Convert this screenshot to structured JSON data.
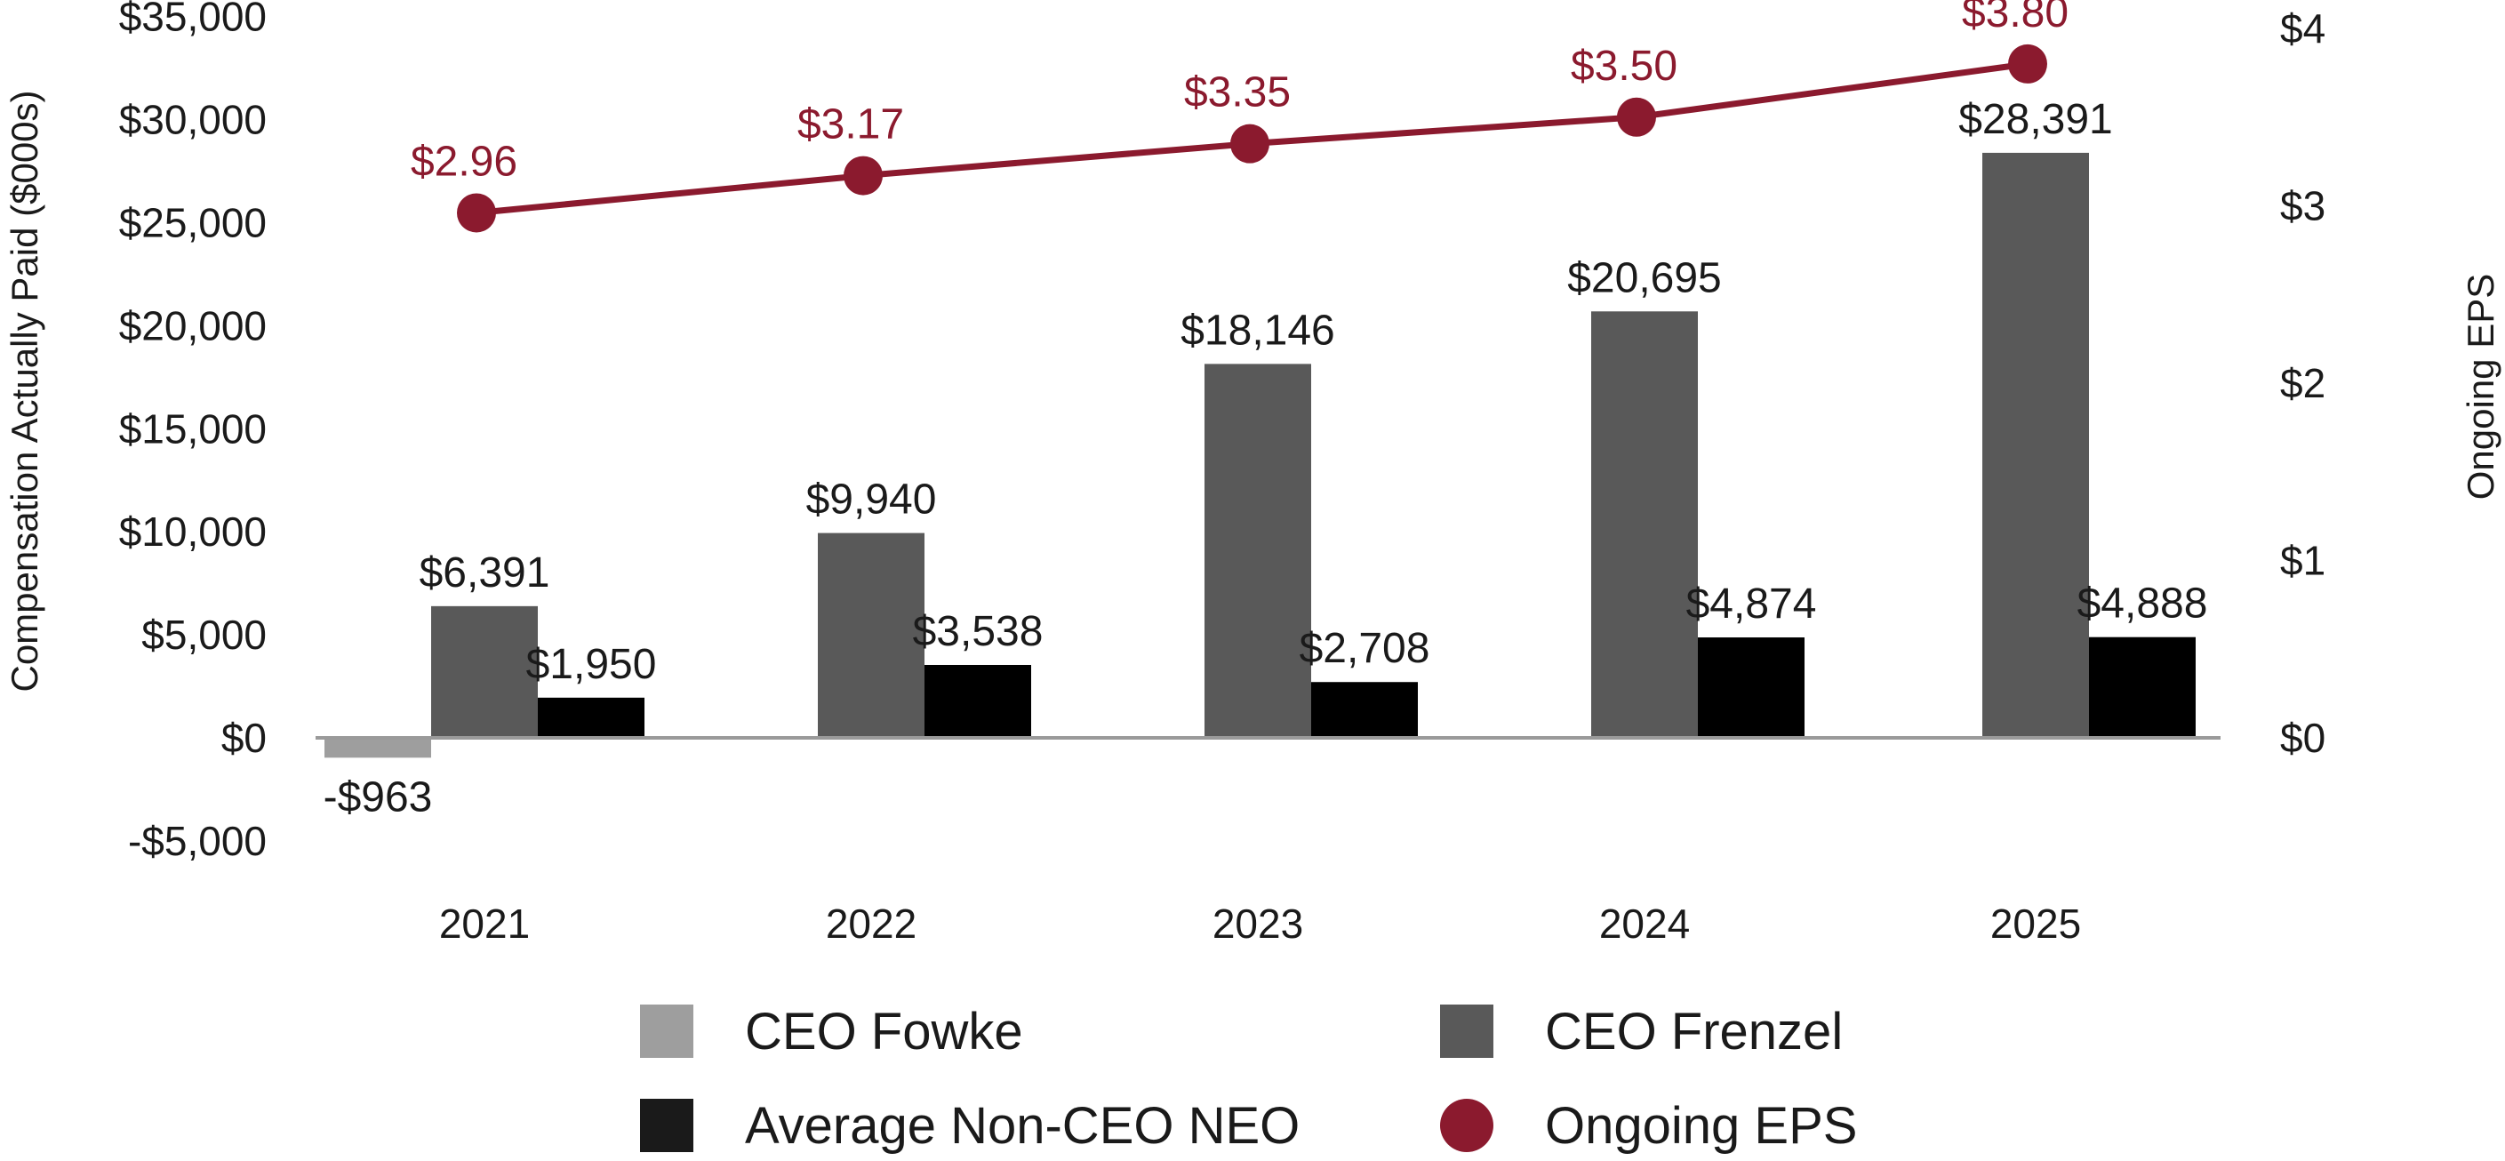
{
  "chart_data": {
    "type": "bar",
    "categories": [
      "2021",
      "2022",
      "2023",
      "2024",
      "2025"
    ],
    "series": [
      {
        "name": "CEO Fowke",
        "color": "#9e9e9e",
        "values": [
          -963,
          null,
          null,
          null,
          null
        ],
        "labels": [
          "-$963",
          "",
          "",
          "",
          ""
        ]
      },
      {
        "name": "CEO Frenzel",
        "color": "#595959",
        "values": [
          6391,
          9940,
          18146,
          20695,
          28391
        ],
        "labels": [
          "$6,391",
          "$9,940",
          "$18,146",
          "$20,695",
          "$28,391"
        ]
      },
      {
        "name": "Average Non-CEO NEO",
        "color": "#000000",
        "values": [
          1950,
          3538,
          2708,
          4874,
          4888
        ],
        "labels": [
          "$1,950",
          "$3,538",
          "$2,708",
          "$4,874",
          "$4,888"
        ]
      }
    ],
    "line_series": {
      "name": "Ongoing EPS",
      "type": "line",
      "axis": "right",
      "color": "#8b1a2e",
      "values": [
        2.96,
        3.17,
        3.35,
        3.5,
        3.8
      ],
      "labels": [
        "$2.96",
        "$3.17",
        "$3.35",
        "$3.50",
        "$3.80"
      ]
    },
    "ylabel": "Compensation Actually Paid ($000s)",
    "y2label": "Ongoing EPS",
    "ylim": [
      -5000,
      35000
    ],
    "y2lim": [
      0,
      4
    ],
    "yticks": [
      35000,
      30000,
      25000,
      20000,
      15000,
      10000,
      5000,
      0,
      -5000
    ],
    "ytick_labels": [
      "$35,000",
      "$30,000",
      "$25,000",
      "$20,000",
      "$15,000",
      "$10,000",
      "$5,000",
      "$0",
      "-$5,000"
    ],
    "y2ticks": [
      4,
      3,
      2,
      1,
      0
    ],
    "y2tick_labels": [
      "$4",
      "$3",
      "$2",
      "$1",
      "$0"
    ],
    "grid": false,
    "legend_position": "bottom",
    "legend": [
      {
        "label": "CEO Fowke",
        "marker": "square",
        "color": "#9e9e9e"
      },
      {
        "label": "CEO Frenzel",
        "marker": "square",
        "color": "#595959"
      },
      {
        "label": "Average Non-CEO NEO",
        "marker": "square",
        "color": "#1a1a1a"
      },
      {
        "label": "Ongoing EPS",
        "marker": "circle",
        "color": "#8b1a2e"
      }
    ]
  }
}
